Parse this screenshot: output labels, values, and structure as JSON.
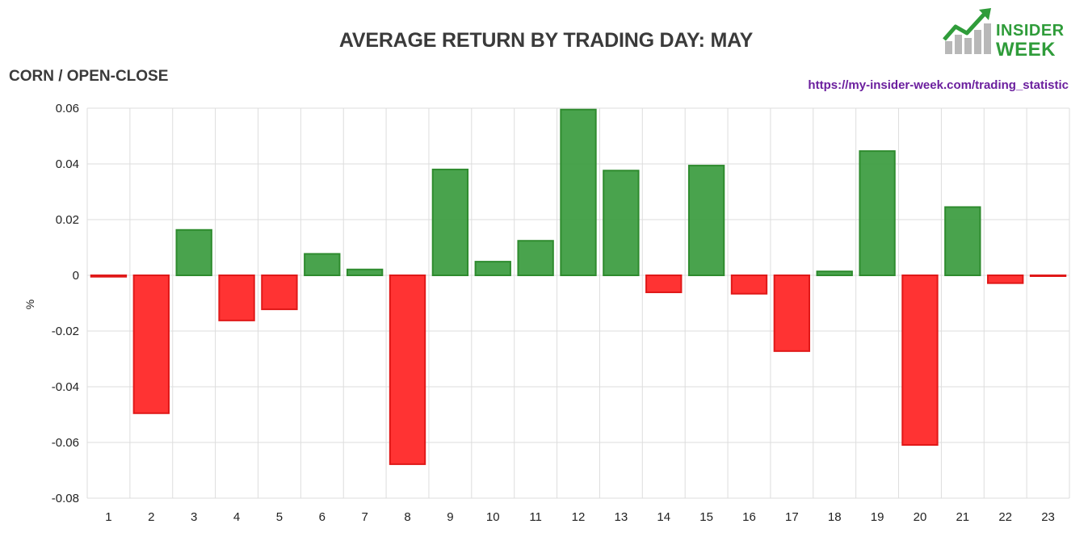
{
  "header": {
    "title": "AVERAGE RETURN BY TRADING DAY: MAY",
    "subtitle": "CORN / OPEN-CLOSE",
    "source_url": "https://my-insider-week.com/trading_statistic"
  },
  "logo": {
    "line1": "INSIDER",
    "line2": "WEEK",
    "icon": "rising-bar-chart-arrow-icon",
    "color": "#2f9c3a"
  },
  "chart_data": {
    "type": "bar",
    "title": "AVERAGE RETURN BY TRADING DAY: MAY",
    "xlabel": "",
    "ylabel": "%",
    "categories": [
      "1",
      "2",
      "3",
      "4",
      "5",
      "6",
      "7",
      "8",
      "9",
      "10",
      "11",
      "12",
      "13",
      "14",
      "15",
      "16",
      "17",
      "18",
      "19",
      "20",
      "21",
      "22",
      "23"
    ],
    "values": [
      -0.0005,
      -0.0495,
      0.0163,
      -0.0162,
      -0.0122,
      0.0077,
      0.0021,
      -0.0678,
      0.038,
      0.0049,
      0.0124,
      0.0595,
      0.0376,
      -0.0061,
      0.0394,
      -0.0066,
      -0.0272,
      0.0014,
      0.0446,
      -0.0609,
      0.0245,
      -0.0028,
      -0.0002
    ],
    "ylim": [
      -0.08,
      0.06
    ],
    "yticks": [
      0.06,
      0.04,
      0.02,
      0,
      -0.02,
      -0.04,
      -0.06,
      -0.08
    ],
    "ytick_labels": [
      "0.06",
      "0.04",
      "0.02",
      "0",
      "-0.02",
      "-0.04",
      "-0.06",
      "-0.08"
    ],
    "grid": true,
    "positive_color": "#43a047",
    "positive_stroke": "#2e8b2e",
    "negative_color": "#ff3333",
    "negative_stroke": "#e01818"
  }
}
